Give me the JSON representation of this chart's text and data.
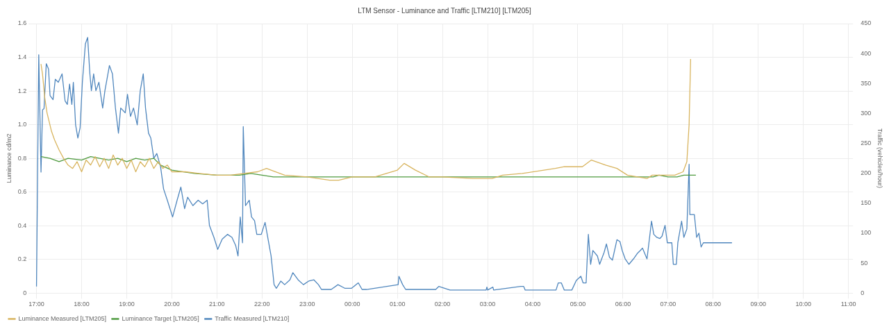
{
  "chart_data": {
    "type": "line",
    "title": "LTM Sensor - Luminance and Traffic [LTM210] [LTM205]",
    "ylabel": "Luminance cd/m2",
    "y2label": "Traffic (vehicles/hour)",
    "xlim": [
      "--01-01T16:57",
      "--01-02T11:06"
    ],
    "xticks": [
      {
        "value": "--01-01T17:00",
        "label": "17:00"
      },
      {
        "value": "--01-01T18:00",
        "label": "18:00"
      },
      {
        "value": "--01-01T19:00",
        "label": "19:00"
      },
      {
        "value": "--01-01T20:00",
        "label": "20:00"
      },
      {
        "value": "--01-01T21:00",
        "label": "21:00"
      },
      {
        "value": "--01-01T22:00",
        "label": "22:00"
      },
      {
        "value": "--01-01T23:00",
        "label": "23:00"
      },
      {
        "value": "--01-02T00:00",
        "label": "00:00"
      },
      {
        "value": "--01-02T01:00",
        "label": "01:00"
      },
      {
        "value": "--01-02T02:00",
        "label": "02:00"
      },
      {
        "value": "--01-02T03:00",
        "label": "03:00"
      },
      {
        "value": "--01-02T04:00",
        "label": "04:00"
      },
      {
        "value": "--01-02T05:00",
        "label": "05:00"
      },
      {
        "value": "--01-02T06:00",
        "label": "06:00"
      },
      {
        "value": "--01-02T07:00",
        "label": "07:00"
      },
      {
        "value": "--01-02T08:00",
        "label": "08:00"
      },
      {
        "value": "--01-02T09:00",
        "label": "09:00"
      },
      {
        "value": "--01-02T10:00",
        "label": "10:00"
      },
      {
        "value": "--01-02T11:00",
        "label": "11:00"
      }
    ],
    "ylim": [
      0,
      1.6
    ],
    "yticks": [
      0,
      0.2,
      0.4,
      0.6,
      0.8,
      {
        "value": 1,
        "label": "1.0"
      },
      1.2,
      1.4,
      1.6
    ],
    "y2lim": [
      0,
      450
    ],
    "y2ticks": [
      0,
      50,
      100,
      150,
      200,
      250,
      300,
      350,
      400,
      450
    ],
    "grid": true,
    "legend": "bottom",
    "marker": "none",
    "line_style": "solid",
    "series": [
      {
        "name": "Luminance Measured [LTM205]",
        "color": "#d8b45e",
        "x": [
          "--01-01T17:06",
          "--01-01T17:08",
          "--01-01T17:11",
          "--01-01T17:14",
          "--01-01T17:20",
          "--01-01T17:24",
          "--01-01T17:30",
          "--01-01T17:36",
          "--01-01T17:42",
          "--01-01T17:48",
          "--01-01T17:54",
          "--01-01T18:00",
          "--01-01T18:06",
          "--01-01T18:12",
          "--01-01T18:18",
          "--01-01T18:24",
          "--01-01T18:30",
          "--01-01T18:36",
          "--01-01T18:42",
          "--01-01T18:48",
          "--01-01T18:54",
          "--01-01T19:00",
          "--01-01T19:06",
          "--01-01T19:12",
          "--01-01T19:18",
          "--01-01T19:24",
          "--01-01T19:30",
          "--01-01T19:36",
          "--01-01T19:42",
          "--01-01T19:48",
          "--01-01T19:54",
          "--01-01T20:00",
          "--01-01T20:18",
          "--01-01T20:36",
          "--01-01T21:00",
          "--01-01T21:18",
          "--01-01T21:36",
          "--01-01T21:54",
          "--01-01T22:06",
          "--01-01T22:12",
          "--01-01T22:30",
          "--01-01T23:00",
          "--01-01T23:30",
          "--01-01T23:42",
          "--01-02T00:00",
          "--01-02T00:30",
          "--01-02T01:00",
          "--01-02T01:09",
          "--01-02T01:24",
          "--01-02T01:42",
          "--01-02T02:00",
          "--01-02T02:40",
          "--01-02T03:06",
          "--01-02T03:20",
          "--01-02T03:46",
          "--01-02T04:30",
          "--01-02T04:42",
          "--01-02T05:06",
          "--01-02T05:18",
          "--01-02T05:37",
          "--01-02T05:52",
          "--01-02T06:06",
          "--01-02T06:32",
          "--01-02T06:39",
          "--01-02T07:00",
          "--01-02T07:09",
          "--01-02T07:20",
          "--01-02T07:25",
          "--01-02T07:28",
          "--01-02T07:30"
        ],
        "values": [
          1.36,
          1.3,
          1.16,
          1.07,
          0.96,
          0.91,
          0.85,
          0.8,
          0.76,
          0.74,
          0.78,
          0.72,
          0.79,
          0.76,
          0.81,
          0.75,
          0.8,
          0.74,
          0.82,
          0.76,
          0.8,
          0.74,
          0.79,
          0.72,
          0.78,
          0.75,
          0.8,
          0.74,
          0.78,
          0.74,
          0.76,
          0.72,
          0.72,
          0.71,
          0.7,
          0.7,
          0.71,
          0.72,
          0.74,
          0.73,
          0.7,
          0.69,
          0.67,
          0.67,
          0.69,
          0.69,
          0.73,
          0.77,
          0.73,
          0.69,
          0.69,
          0.68,
          0.68,
          0.7,
          0.71,
          0.74,
          0.75,
          0.75,
          0.79,
          0.76,
          0.74,
          0.7,
          0.68,
          0.7,
          0.7,
          0.7,
          0.72,
          0.78,
          1.0,
          1.39
        ]
      },
      {
        "name": "Luminance Target [LTM205]",
        "color": "#4e9a3e",
        "x": [
          "--01-01T17:06",
          "--01-01T17:18",
          "--01-01T17:30",
          "--01-01T17:42",
          "--01-01T18:00",
          "--01-01T18:12",
          "--01-01T18:24",
          "--01-01T18:36",
          "--01-01T18:48",
          "--01-01T19:00",
          "--01-01T19:12",
          "--01-01T19:24",
          "--01-01T19:36",
          "--01-01T19:45",
          "--01-01T20:00",
          "--01-01T20:30",
          "--01-01T21:00",
          "--01-01T21:30",
          "--01-01T21:45",
          "--01-01T22:00",
          "--01-01T22:15",
          "--01-01T23:00",
          "--01-02T00:00",
          "--01-02T01:00",
          "--01-02T02:00",
          "--01-02T03:00",
          "--01-02T04:00",
          "--01-02T05:00",
          "--01-02T06:00",
          "--01-02T06:40",
          "--01-02T06:48",
          "--01-02T07:00",
          "--01-02T07:12",
          "--01-02T07:21",
          "--01-02T07:27",
          "--01-02T07:37"
        ],
        "values": [
          0.81,
          0.8,
          0.78,
          0.8,
          0.79,
          0.81,
          0.8,
          0.79,
          0.8,
          0.78,
          0.8,
          0.79,
          0.8,
          0.76,
          0.73,
          0.71,
          0.7,
          0.7,
          0.71,
          0.7,
          0.69,
          0.69,
          0.69,
          0.69,
          0.69,
          0.69,
          0.69,
          0.69,
          0.69,
          0.69,
          0.7,
          0.69,
          0.69,
          0.7,
          0.7,
          0.7
        ]
      },
      {
        "name": "Traffic Measured [LTM210]",
        "color": "#4f86bd",
        "axis": "y2",
        "x": [
          "--01-01T17:00",
          "--01-01T17:03",
          "--01-01T17:06",
          "--01-01T17:08",
          "--01-01T17:10",
          "--01-01T17:13",
          "--01-01T17:16",
          "--01-01T17:18",
          "--01-01T17:22",
          "--01-01T17:25",
          "--01-01T17:29",
          "--01-01T17:34",
          "--01-01T17:38",
          "--01-01T17:41",
          "--01-01T17:44",
          "--01-01T17:47",
          "--01-01T17:49",
          "--01-01T17:52",
          "--01-01T17:55",
          "--01-01T17:58",
          "--01-01T18:01",
          "--01-01T18:05",
          "--01-01T18:08",
          "--01-01T18:11",
          "--01-01T18:13",
          "--01-01T18:16",
          "--01-01T18:19",
          "--01-01T18:23",
          "--01-01T18:28",
          "--01-01T18:31",
          "--01-01T18:37",
          "--01-01T18:41",
          "--01-01T18:45",
          "--01-01T18:49",
          "--01-01T18:52",
          "--01-01T18:58",
          "--01-01T19:01",
          "--01-01T19:05",
          "--01-01T19:09",
          "--01-01T19:14",
          "--01-01T19:18",
          "--01-01T19:22",
          "--01-01T19:25",
          "--01-01T19:29",
          "--01-01T19:32",
          "--01-01T19:36",
          "--01-01T19:40",
          "--01-01T19:45",
          "--01-01T19:49",
          "--01-01T19:54",
          "--01-01T20:01",
          "--01-01T20:07",
          "--01-01T20:12",
          "--01-01T20:17",
          "--01-01T20:21",
          "--01-01T20:28",
          "--01-01T20:35",
          "--01-01T20:41",
          "--01-01T20:47",
          "--01-01T20:50",
          "--01-01T20:56",
          "--01-01T21:01",
          "--01-01T21:07",
          "--01-01T21:14",
          "--01-01T21:20",
          "--01-01T21:25",
          "--01-01T21:28",
          "--01-01T21:31",
          "--01-01T21:34",
          "--01-01T21:35",
          "--01-01T21:38",
          "--01-01T21:43",
          "--01-01T21:46",
          "--01-01T21:50",
          "--01-01T21:53",
          "--01-01T21:59",
          "--01-01T22:04",
          "--01-01T22:08",
          "--01-01T22:12",
          "--01-01T22:16",
          "--01-01T22:19",
          "--01-01T22:25",
          "--01-01T22:30",
          "--01-01T22:37",
          "--01-01T22:41",
          "--01-01T22:48",
          "--01-01T22:55",
          "--01-01T23:02",
          "--01-01T23:09",
          "--01-01T23:15",
          "--01-01T23:19",
          "--01-01T23:32",
          "--01-01T23:41",
          "--01-01T23:50",
          "--01-01T23:59",
          "--01-02T00:08",
          "--01-02T00:13",
          "--01-02T00:19",
          "--01-02T01:01",
          "--01-02T01:02",
          "--01-02T01:07",
          "--01-02T01:11",
          "--01-02T01:51",
          "--01-02T01:55",
          "--01-02T02:10",
          "--01-02T02:58",
          "--01-02T02:59",
          "--01-02T03:00",
          "--01-02T03:07",
          "--01-02T03:08",
          "--01-02T03:44",
          "--01-02T03:48",
          "--01-02T03:50",
          "--01-02T04:31",
          "--01-02T04:34",
          "--01-02T04:38",
          "--01-02T04:42",
          "--01-02T04:52",
          "--01-02T04:58",
          "--01-02T05:04",
          "--01-02T05:07",
          "--01-02T05:11",
          "--01-02T05:14",
          "--01-02T05:17",
          "--01-02T05:20",
          "--01-02T05:26",
          "--01-02T05:29",
          "--01-02T05:35",
          "--01-02T05:38",
          "--01-02T05:42",
          "--01-02T05:46",
          "--01-02T05:52",
          "--01-02T05:56",
          "--01-02T05:59",
          "--01-02T06:03",
          "--01-02T06:08",
          "--01-02T06:14",
          "--01-02T06:19",
          "--01-02T06:23",
          "--01-02T06:26",
          "--01-02T06:32",
          "--01-02T06:38",
          "--01-02T06:41",
          "--01-02T06:45",
          "--01-02T06:49",
          "--01-02T06:52",
          "--01-02T06:56",
          "--01-02T06:59",
          "--01-02T07:05",
          "--01-02T07:07",
          "--01-02T07:11",
          "--01-02T07:13",
          "--01-02T07:18",
          "--01-02T07:21",
          "--01-02T07:25",
          "--01-02T07:28",
          "--01-02T07:29",
          "--01-02T07:35",
          "--01-02T07:38",
          "--01-02T07:41",
          "--01-02T07:44",
          "--01-02T07:47",
          "--01-02T08:25"
        ],
        "values": [
          11,
          398,
          202,
          306,
          308,
          383,
          374,
          330,
          323,
          357,
          352,
          366,
          321,
          315,
          349,
          315,
          352,
          281,
          259,
          276,
          352,
          416,
          427,
          366,
          338,
          366,
          338,
          352,
          309,
          338,
          380,
          366,
          309,
          267,
          309,
          301,
          332,
          295,
          309,
          281,
          338,
          366,
          309,
          267,
          259,
          225,
          233,
          211,
          174,
          155,
          127,
          155,
          177,
          141,
          160,
          146,
          155,
          149,
          155,
          113,
          93,
          73,
          90,
          98,
          93,
          79,
          62,
          127,
          84,
          278,
          146,
          155,
          127,
          121,
          98,
          98,
          118,
          90,
          62,
          14,
          8,
          20,
          14,
          22,
          34,
          22,
          14,
          20,
          22,
          14,
          6,
          6,
          14,
          8,
          8,
          17,
          6,
          6,
          14,
          28,
          14,
          6,
          6,
          11,
          5,
          5,
          10,
          5,
          10,
          5,
          11,
          11,
          5,
          5,
          17,
          17,
          5,
          5,
          21,
          28,
          17,
          17,
          98,
          48,
          71,
          62,
          48,
          68,
          82,
          60,
          55,
          89,
          86,
          71,
          57,
          48,
          57,
          66,
          71,
          75,
          57,
          120,
          98,
          93,
          91,
          95,
          113,
          84,
          84,
          48,
          48,
          84,
          120,
          93,
          107,
          215,
          131,
          131,
          93,
          100,
          77,
          84,
          84
        ]
      }
    ]
  }
}
